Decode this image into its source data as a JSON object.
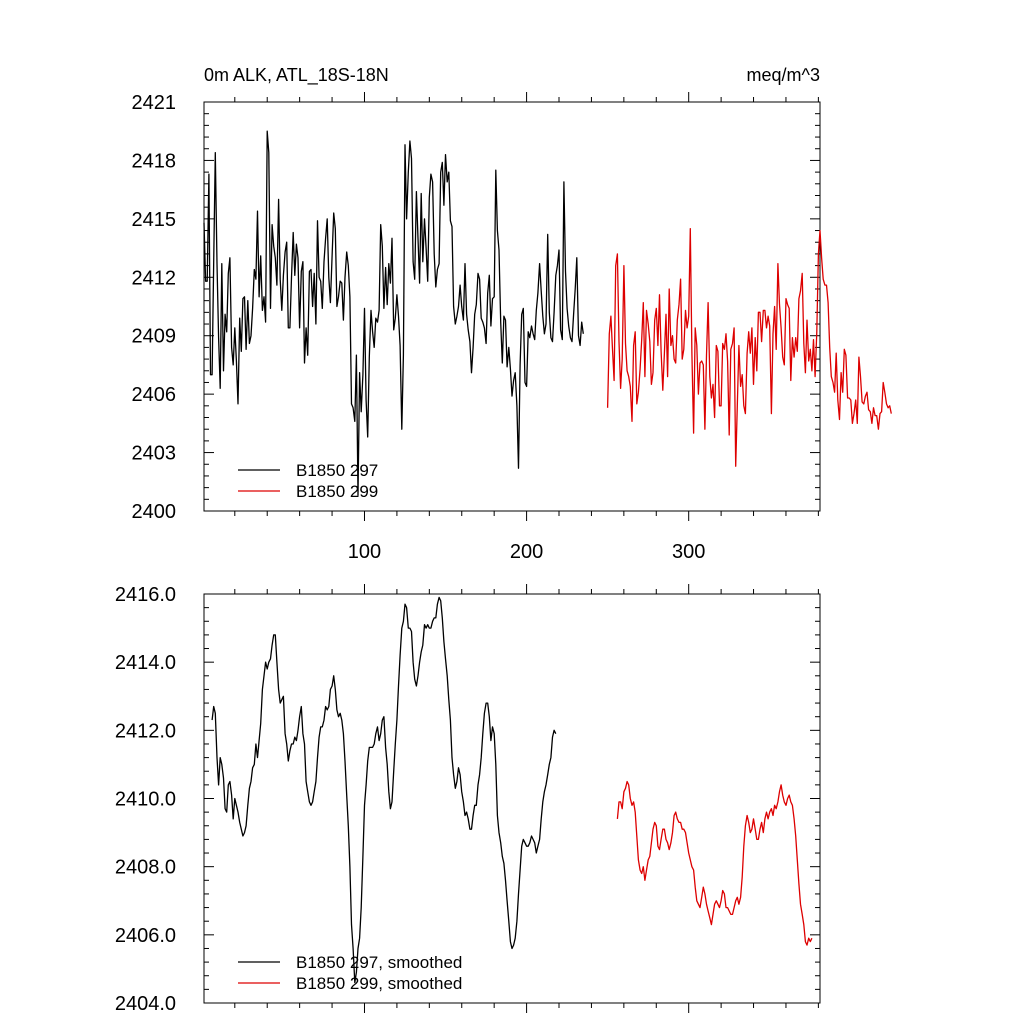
{
  "figure_title_left": "0m ALK, ATL_18S-18N",
  "figure_title_right": "meq/m^3",
  "chart_data": [
    {
      "type": "line",
      "xlim": [
        1,
        381
      ],
      "ylim": [
        2400,
        2421
      ],
      "yticks": [
        2400,
        2403,
        2406,
        2409,
        2412,
        2415,
        2418,
        2421
      ],
      "ytick_labels": [
        "2400",
        "2403",
        "2406",
        "2409",
        "2412",
        "2415",
        "2418",
        "2421"
      ],
      "xticks": [
        100,
        200,
        300
      ],
      "xtick_labels": [
        "100",
        "200",
        "300"
      ],
      "series": [
        {
          "name": "B1850 297",
          "color": "#000000",
          "x_start": 1,
          "values": [
            2414.8,
            2411.8,
            2411.8,
            2417.3,
            2407.0,
            2407.0,
            2412.8,
            2418.4,
            2412.7,
            2408.9,
            2406.3,
            2412.7,
            2407.2,
            2410.1,
            2409.2,
            2412.2,
            2413.0,
            2408.4,
            2407.5,
            2409.4,
            2407.7,
            2405.5,
            2409.9,
            2408.2,
            2410.9,
            2411.0,
            2408.3,
            2410.8,
            2408.6,
            2409.0,
            2410.4,
            2412.4,
            2411.9,
            2415.4,
            2411.0,
            2413.1,
            2410.3,
            2411.0,
            2409.7,
            2419.5,
            2418.4,
            2410.4,
            2414.7,
            2413.6,
            2413.0,
            2411.6,
            2416.0,
            2411.9,
            2410.3,
            2412.1,
            2413.3,
            2413.8,
            2409.4,
            2409.4,
            2412.0,
            2414.3,
            2412.1,
            2413.7,
            2413.0,
            2409.4,
            2412.3,
            2412.8,
            2407.6,
            2409.4,
            2408.0,
            2412.3,
            2412.4,
            2410.5,
            2412.2,
            2409.6,
            2414.9,
            2412.0,
            2411.8,
            2410.4,
            2412.8,
            2414.0,
            2415.0,
            2412.0,
            2410.7,
            2413.1,
            2415.3,
            2414.5,
            2410.5,
            2411.0,
            2411.8,
            2411.7,
            2409.8,
            2412.0,
            2413.3,
            2412.6,
            2411.0,
            2405.5,
            2405.3,
            2404.6,
            2408.0,
            2400.8,
            2407.1,
            2405.1,
            2407.0,
            2410.4,
            2405.7,
            2403.8,
            2407.9,
            2410.3,
            2409.2,
            2408.4,
            2409.9,
            2409.7,
            2410.3,
            2414.7,
            2413.6,
            2410.4,
            2412.5,
            2410.6,
            2412.7,
            2411.7,
            2414.0,
            2409.3,
            2409.9,
            2411.1,
            2410.0,
            2408.5,
            2404.2,
            2408.0,
            2418.8,
            2415.0,
            2417.4,
            2419.0,
            2418.1,
            2412.8,
            2411.9,
            2416.4,
            2414.0,
            2411.7,
            2416.3,
            2412.8,
            2415.0,
            2413.5,
            2411.8,
            2416.1,
            2417.3,
            2416.9,
            2413.2,
            2411.5,
            2412.4,
            2412.7,
            2417.4,
            2417.9,
            2415.7,
            2418.3,
            2416.9,
            2417.4,
            2414.9,
            2414.6,
            2410.5,
            2409.6,
            2410.0,
            2410.5,
            2411.6,
            2410.5,
            2409.8,
            2412.7,
            2410.1,
            2409.3,
            2408.7,
            2407.1,
            2408.4,
            2410.1,
            2410.6,
            2412.2,
            2411.9,
            2409.9,
            2409.7,
            2409.4,
            2408.6,
            2411.2,
            2412.1,
            2409.5,
            2410.9,
            2411.0,
            2417.5,
            2414.4,
            2413.4,
            2409.7,
            2407.6,
            2410.0,
            2409.8,
            2407.4,
            2408.4,
            2407.3,
            2405.9,
            2406.7,
            2407.1,
            2405.4,
            2402.2,
            2407.5,
            2410.1,
            2410.4,
            2406.6,
            2406.4,
            2409.2,
            2408.9,
            2409.5,
            2409.1,
            2408.8,
            2410.3,
            2411.2,
            2412.7,
            2411.3,
            2410.0,
            2409.1,
            2409.6,
            2414.2,
            2410.2,
            2408.9,
            2408.7,
            2410.2,
            2412.1,
            2412.6,
            2413.4,
            2409.3,
            2408.8,
            2416.9,
            2412.3,
            2410.4,
            2409.5,
            2408.9,
            2408.7,
            2410.1,
            2411.4,
            2413.0,
            2409.0,
            2408.5,
            2409.7,
            2409.1
          ],
          "legend": "B1850 297"
        },
        {
          "name": "B1850 299",
          "color": "#dd0000",
          "x_start": 250,
          "values": [
            2405.3,
            2409.1,
            2410.0,
            2408.3,
            2406.7,
            2412.6,
            2413.2,
            2408.7,
            2406.3,
            2407.8,
            2412.6,
            2408.6,
            2407.2,
            2406.9,
            2406.4,
            2404.6,
            2408.5,
            2409.2,
            2405.5,
            2406.1,
            2407.3,
            2408.8,
            2410.7,
            2406.9,
            2410.3,
            2409.6,
            2408.7,
            2406.5,
            2407.1,
            2409.8,
            2410.4,
            2408.5,
            2411.1,
            2408.2,
            2406.2,
            2408.1,
            2410.1,
            2406.9,
            2411.4,
            2408.5,
            2409.0,
            2407.8,
            2407.6,
            2409.8,
            2410.6,
            2411.9,
            2407.8,
            2408.3,
            2410.3,
            2409.4,
            2410.0,
            2414.5,
            2408.1,
            2404.0,
            2409.4,
            2408.5,
            2406.0,
            2407.6,
            2407.7,
            2407.5,
            2404.2,
            2408.0,
            2410.7,
            2406.9,
            2405.8,
            2406.5,
            2404.8,
            2408.5,
            2408.2,
            2405.4,
            2405.4,
            2408.6,
            2408.3,
            2409.1,
            2407.7,
            2403.9,
            2408.3,
            2408.6,
            2409.4,
            2402.3,
            2405.4,
            2408.5,
            2406.4,
            2407.0,
            2405.4,
            2405.0,
            2408.1,
            2409.2,
            2408.1,
            2409.4,
            2406.5,
            2408.9,
            2407.2,
            2410.2,
            2410.2,
            2408.7,
            2410.3,
            2410.3,
            2409.4,
            2410.0,
            2409.5,
            2405.0,
            2409.1,
            2410.5,
            2408.3,
            2412.7,
            2410.6,
            2409.4,
            2407.9,
            2407.5,
            2410.9,
            2410.6,
            2410.4,
            2406.7,
            2408.9,
            2407.9,
            2408.9,
            2408.2,
            2410.9,
            2411.3,
            2412.2,
            2408.6,
            2407.1,
            2409.8,
            2407.7,
            2408.3,
            2407.2,
            2408.8,
            2406.9,
            2409.2,
            2413.2,
            2414.4,
            2413.0,
            2411.9,
            2411.6,
            2411.6,
            2410.7,
            2408.4,
            2406.9,
            2406.6,
            2406.1,
            2408.1,
            2405.7,
            2404.7,
            2407.1,
            2406.1,
            2408.3,
            2408.0,
            2405.8,
            2405.8,
            2405.7,
            2404.5,
            2405.0,
            2405.7,
            2404.5,
            2407.9,
            2406.9,
            2405.6,
            2405.5,
            2405.9,
            2406.1,
            2405.2,
            2405.1,
            2404.5,
            2405.3,
            2404.9,
            2404.9,
            2404.2,
            2405.0,
            2405.1,
            2406.6,
            2406.1,
            2405.5,
            2405.3,
            2405.4,
            2405.0
          ],
          "legend": "B1850 299"
        }
      ]
    },
    {
      "type": "line",
      "xlim": [
        1,
        381
      ],
      "ylim": [
        2404.0,
        2416.0
      ],
      "yticks": [
        2404.0,
        2406.0,
        2408.0,
        2410.0,
        2412.0,
        2414.0,
        2416.0
      ],
      "ytick_labels": [
        "2404.0",
        "2406.0",
        "2408.0",
        "2410.0",
        "2412.0",
        "2414.0",
        "2416.0"
      ],
      "xticks": [
        100,
        200,
        300
      ],
      "xtick_labels": [
        "",
        "",
        ""
      ],
      "series": [
        {
          "name": "B1850 297, smoothed",
          "color": "#000000",
          "x_start": 6,
          "values": [
            2412.3,
            2412.7,
            2412.5,
            2411.2,
            2410.4,
            2411.2,
            2411.0,
            2410.6,
            2409.7,
            2409.6,
            2410.4,
            2410.5,
            2410.1,
            2409.4,
            2410.0,
            2409.8,
            2409.6,
            2409.3,
            2409.1,
            2408.9,
            2409.0,
            2409.2,
            2409.8,
            2410.3,
            2410.5,
            2410.9,
            2411.0,
            2411.6,
            2411.2,
            2411.7,
            2412.2,
            2413.2,
            2413.6,
            2414.0,
            2413.8,
            2414.0,
            2414.1,
            2414.5,
            2414.8,
            2414.8,
            2414.0,
            2413.2,
            2412.8,
            2412.9,
            2413.0,
            2411.9,
            2411.6,
            2411.1,
            2411.4,
            2411.6,
            2411.6,
            2411.8,
            2411.7,
            2412.0,
            2412.4,
            2412.7,
            2411.9,
            2411.6,
            2410.5,
            2410.2,
            2409.9,
            2409.8,
            2409.9,
            2410.2,
            2410.5,
            2411.2,
            2411.8,
            2412.1,
            2412.1,
            2412.3,
            2412.7,
            2412.6,
            2412.7,
            2413.2,
            2413.3,
            2413.6,
            2413.2,
            2412.6,
            2412.4,
            2412.5,
            2412.3,
            2411.9,
            2411.1,
            2410.1,
            2409.2,
            2408.0,
            2406.3,
            2405.6,
            2404.6,
            2404.9,
            2405.6,
            2405.9,
            2406.8,
            2408.3,
            2409.8,
            2410.4,
            2411.1,
            2411.5,
            2411.5,
            2411.5,
            2411.6,
            2411.9,
            2412.1,
            2411.7,
            2411.9,
            2412.3,
            2412.4,
            2411.5,
            2411.0,
            2410.2,
            2409.7,
            2409.9,
            2410.8,
            2411.6,
            2412.3,
            2413.3,
            2414.2,
            2415.0,
            2415.2,
            2415.7,
            2415.6,
            2415.0,
            2415.0,
            2414.9,
            2414.0,
            2413.5,
            2413.3,
            2413.6,
            2414.0,
            2414.3,
            2414.5,
            2415.1,
            2415.0,
            2415.1,
            2415.0,
            2415.0,
            2415.2,
            2415.3,
            2415.3,
            2415.7,
            2415.9,
            2415.8,
            2415.3,
            2414.6,
            2414.1,
            2413.6,
            2412.9,
            2412.3,
            2411.2,
            2410.7,
            2410.3,
            2410.5,
            2410.9,
            2410.7,
            2410.2,
            2409.9,
            2409.5,
            2409.6,
            2409.4,
            2409.1,
            2409.1,
            2409.5,
            2409.8,
            2409.8,
            2410.4,
            2410.7,
            2411.2,
            2411.9,
            2412.5,
            2412.8,
            2412.8,
            2412.4,
            2411.7,
            2412.1,
            2411.9,
            2411.0,
            2409.5,
            2409.0,
            2408.7,
            2408.3,
            2408.1,
            2407.6,
            2407.0,
            2406.4,
            2405.8,
            2405.6,
            2405.7,
            2405.9,
            2406.4,
            2407.2,
            2407.9,
            2408.6,
            2408.8,
            2408.7,
            2408.6,
            2408.6,
            2408.7,
            2408.9,
            2408.8,
            2408.7,
            2408.4,
            2408.6,
            2408.8,
            2409.4,
            2409.9,
            2410.2,
            2410.4,
            2410.7,
            2411.0,
            2411.2,
            2411.8,
            2412.0,
            2411.9
          ],
          "legend": "B1850 297, smoothed"
        },
        {
          "name": "B1850 299, smoothed",
          "color": "#dd0000",
          "x_start": 256,
          "values": [
            2409.4,
            2409.9,
            2409.9,
            2409.7,
            2410.2,
            2410.3,
            2410.5,
            2410.4,
            2410.0,
            2409.8,
            2409.9,
            2409.6,
            2408.9,
            2408.2,
            2407.9,
            2407.8,
            2408.0,
            2407.6,
            2407.9,
            2408.2,
            2408.3,
            2408.7,
            2409.1,
            2409.3,
            2409.2,
            2408.6,
            2408.5,
            2408.8,
            2409.1,
            2409.1,
            2408.8,
            2408.7,
            2408.5,
            2408.7,
            2409.0,
            2409.5,
            2409.6,
            2409.4,
            2409.3,
            2409.3,
            2409.1,
            2409.1,
            2409.0,
            2408.7,
            2408.4,
            2408.2,
            2408.0,
            2407.9,
            2407.4,
            2407.0,
            2406.9,
            2406.8,
            2407.1,
            2407.4,
            2407.2,
            2406.9,
            2406.7,
            2406.5,
            2406.3,
            2406.6,
            2406.9,
            2407.0,
            2406.9,
            2406.8,
            2407.0,
            2407.3,
            2407.2,
            2406.8,
            2406.8,
            2406.7,
            2406.6,
            2406.6,
            2406.8,
            2407.0,
            2407.1,
            2406.9,
            2407.1,
            2407.7,
            2408.6,
            2409.2,
            2409.5,
            2409.3,
            2409.0,
            2409.1,
            2409.4,
            2409.1,
            2408.8,
            2408.8,
            2409.1,
            2409.3,
            2409.0,
            2409.4,
            2409.6,
            2409.4,
            2409.6,
            2409.7,
            2409.5,
            2409.8,
            2409.7,
            2409.9,
            2410.2,
            2410.4,
            2410.1,
            2409.9,
            2409.8,
            2410.0,
            2410.1,
            2409.9,
            2409.8,
            2409.4,
            2408.9,
            2408.2,
            2407.5,
            2406.9,
            2406.6,
            2406.3,
            2405.8,
            2405.7,
            2405.9,
            2405.8,
            2405.9
          ],
          "legend": "B1850 299, smoothed"
        }
      ]
    }
  ]
}
